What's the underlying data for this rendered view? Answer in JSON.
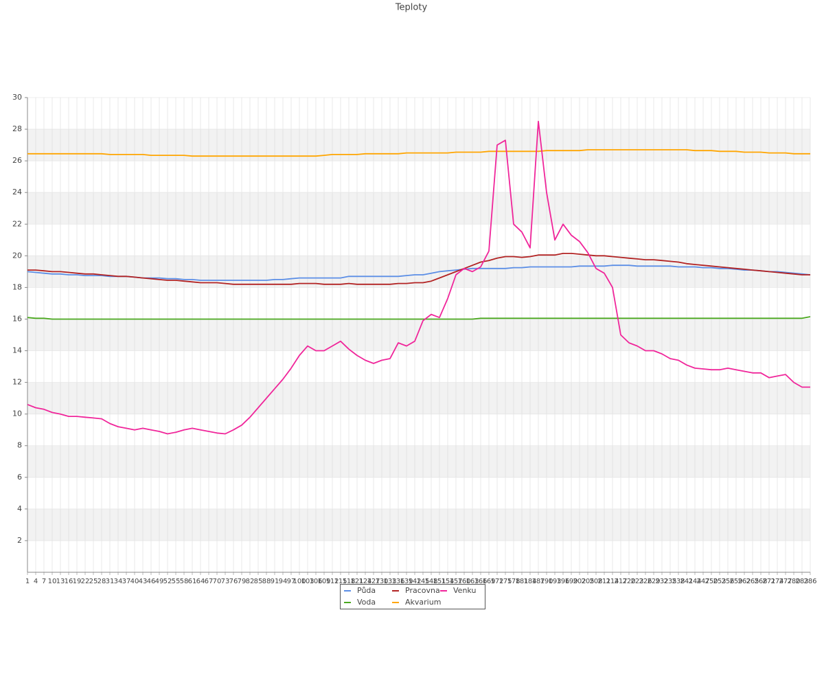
{
  "chart_data": {
    "type": "line",
    "title": "Teploty",
    "x": [
      1,
      4,
      7,
      10,
      13,
      16,
      19,
      22,
      25,
      28,
      31,
      34,
      37,
      40,
      43,
      46,
      49,
      52,
      55,
      58,
      61,
      64,
      67,
      70,
      73,
      76,
      79,
      82,
      85,
      88,
      91,
      94,
      97,
      100,
      103,
      106,
      109,
      112,
      115,
      118,
      121,
      124,
      127,
      130,
      133,
      136,
      139,
      142,
      145,
      148,
      151,
      154,
      157,
      160,
      163,
      166,
      169,
      172,
      175,
      178,
      181,
      184,
      187,
      190,
      193,
      196,
      199,
      202,
      205,
      208,
      211,
      214,
      217,
      220,
      223,
      226,
      229,
      232,
      235,
      238,
      241,
      244,
      247,
      250,
      253,
      256,
      259,
      262,
      265,
      268,
      271,
      274,
      277,
      280,
      283,
      286
    ],
    "xlim": [
      1,
      286
    ],
    "ylim": [
      0,
      30
    ],
    "yticks": [
      2,
      4,
      6,
      8,
      10,
      12,
      14,
      16,
      18,
      20,
      22,
      24,
      26,
      28,
      30
    ],
    "grid": true,
    "series": [
      {
        "name": "Půda",
        "color": "#5b8ee6",
        "values": [
          19.0,
          18.95,
          18.9,
          18.85,
          18.85,
          18.8,
          18.8,
          18.75,
          18.75,
          18.75,
          18.7,
          18.7,
          18.7,
          18.65,
          18.6,
          18.6,
          18.6,
          18.55,
          18.55,
          18.5,
          18.5,
          18.45,
          18.45,
          18.45,
          18.45,
          18.45,
          18.45,
          18.45,
          18.45,
          18.45,
          18.5,
          18.5,
          18.55,
          18.6,
          18.6,
          18.6,
          18.6,
          18.6,
          18.6,
          18.7,
          18.7,
          18.7,
          18.7,
          18.7,
          18.7,
          18.7,
          18.75,
          18.8,
          18.8,
          18.9,
          19.0,
          19.05,
          19.1,
          19.15,
          19.2,
          19.2,
          19.2,
          19.2,
          19.2,
          19.25,
          19.25,
          19.3,
          19.3,
          19.3,
          19.3,
          19.3,
          19.3,
          19.35,
          19.35,
          19.35,
          19.35,
          19.4,
          19.4,
          19.4,
          19.35,
          19.35,
          19.35,
          19.35,
          19.35,
          19.3,
          19.3,
          19.3,
          19.25,
          19.25,
          19.2,
          19.2,
          19.15,
          19.1,
          19.1,
          19.05,
          19.0,
          19.0,
          18.95,
          18.9,
          18.85,
          18.8
        ]
      },
      {
        "name": "Voda",
        "color": "#4aa81e",
        "values": [
          16.1,
          16.05,
          16.05,
          16.0,
          16.0,
          16.0,
          16.0,
          16.0,
          16.0,
          16.0,
          16.0,
          16.0,
          16.0,
          16.0,
          16.0,
          16.0,
          16.0,
          16.0,
          16.0,
          16.0,
          16.0,
          16.0,
          16.0,
          16.0,
          16.0,
          16.0,
          16.0,
          16.0,
          16.0,
          16.0,
          16.0,
          16.0,
          16.0,
          16.0,
          16.0,
          16.0,
          16.0,
          16.0,
          16.0,
          16.0,
          16.0,
          16.0,
          16.0,
          16.0,
          16.0,
          16.0,
          16.0,
          16.0,
          16.0,
          16.0,
          16.0,
          16.0,
          16.0,
          16.0,
          16.0,
          16.05,
          16.05,
          16.05,
          16.05,
          16.05,
          16.05,
          16.05,
          16.05,
          16.05,
          16.05,
          16.05,
          16.05,
          16.05,
          16.05,
          16.05,
          16.05,
          16.05,
          16.05,
          16.05,
          16.05,
          16.05,
          16.05,
          16.05,
          16.05,
          16.05,
          16.05,
          16.05,
          16.05,
          16.05,
          16.05,
          16.05,
          16.05,
          16.05,
          16.05,
          16.05,
          16.05,
          16.05,
          16.05,
          16.05,
          16.05,
          16.15
        ]
      },
      {
        "name": "Pracovna",
        "color": "#b22222",
        "values": [
          19.1,
          19.1,
          19.05,
          19.0,
          19.0,
          18.95,
          18.9,
          18.85,
          18.85,
          18.8,
          18.75,
          18.7,
          18.7,
          18.65,
          18.6,
          18.55,
          18.5,
          18.45,
          18.45,
          18.4,
          18.35,
          18.3,
          18.3,
          18.3,
          18.25,
          18.2,
          18.2,
          18.2,
          18.2,
          18.2,
          18.2,
          18.2,
          18.2,
          18.25,
          18.25,
          18.25,
          18.2,
          18.2,
          18.2,
          18.25,
          18.2,
          18.2,
          18.2,
          18.2,
          18.2,
          18.25,
          18.25,
          18.3,
          18.3,
          18.4,
          18.6,
          18.8,
          19.0,
          19.2,
          19.4,
          19.6,
          19.7,
          19.85,
          19.95,
          19.95,
          19.9,
          19.95,
          20.05,
          20.05,
          20.05,
          20.15,
          20.15,
          20.1,
          20.05,
          20.0,
          20.0,
          19.95,
          19.9,
          19.85,
          19.8,
          19.75,
          19.75,
          19.7,
          19.65,
          19.6,
          19.5,
          19.45,
          19.4,
          19.35,
          19.3,
          19.25,
          19.2,
          19.15,
          19.1,
          19.05,
          19.0,
          18.95,
          18.9,
          18.85,
          18.8,
          18.8
        ]
      },
      {
        "name": "Akvarium",
        "color": "#ffa500",
        "values": [
          26.45,
          26.45,
          26.45,
          26.45,
          26.45,
          26.45,
          26.45,
          26.45,
          26.45,
          26.45,
          26.4,
          26.4,
          26.4,
          26.4,
          26.4,
          26.35,
          26.35,
          26.35,
          26.35,
          26.35,
          26.3,
          26.3,
          26.3,
          26.3,
          26.3,
          26.3,
          26.3,
          26.3,
          26.3,
          26.3,
          26.3,
          26.3,
          26.3,
          26.3,
          26.3,
          26.3,
          26.35,
          26.4,
          26.4,
          26.4,
          26.4,
          26.45,
          26.45,
          26.45,
          26.45,
          26.45,
          26.5,
          26.5,
          26.5,
          26.5,
          26.5,
          26.5,
          26.55,
          26.55,
          26.55,
          26.55,
          26.6,
          26.6,
          26.6,
          26.6,
          26.6,
          26.6,
          26.6,
          26.65,
          26.65,
          26.65,
          26.65,
          26.65,
          26.7,
          26.7,
          26.7,
          26.7,
          26.7,
          26.7,
          26.7,
          26.7,
          26.7,
          26.7,
          26.7,
          26.7,
          26.7,
          26.65,
          26.65,
          26.65,
          26.6,
          26.6,
          26.6,
          26.55,
          26.55,
          26.55,
          26.5,
          26.5,
          26.5,
          26.45,
          26.45,
          26.45
        ]
      },
      {
        "name": "Venku",
        "color": "#f0259a",
        "values": [
          10.6,
          10.4,
          10.3,
          10.1,
          10.0,
          9.85,
          9.85,
          9.8,
          9.75,
          9.7,
          9.4,
          9.2,
          9.1,
          9.0,
          9.1,
          9.0,
          8.9,
          8.75,
          8.85,
          9.0,
          9.1,
          9.0,
          8.9,
          8.8,
          8.75,
          9.0,
          9.3,
          9.8,
          10.4,
          11.0,
          11.6,
          12.2,
          12.9,
          13.7,
          14.3,
          14.0,
          14.0,
          14.3,
          14.6,
          14.1,
          13.7,
          13.4,
          13.2,
          13.4,
          13.5,
          14.5,
          14.3,
          14.6,
          15.9,
          16.3,
          16.1,
          17.3,
          18.8,
          19.2,
          19.0,
          19.3,
          20.3,
          27.0,
          27.3,
          22.0,
          21.5,
          20.5,
          28.5,
          24.0,
          21.0,
          22.0,
          21.3,
          20.9,
          20.2,
          19.2,
          18.9,
          18.0,
          15.0,
          14.5,
          14.3,
          14.0,
          14.0,
          13.8,
          13.5,
          13.4,
          13.1,
          12.9,
          12.85,
          12.8,
          12.8,
          12.9,
          12.8,
          12.7,
          12.6,
          12.6,
          12.3,
          12.4,
          12.5,
          12.0,
          11.7,
          11.7
        ]
      }
    ]
  }
}
